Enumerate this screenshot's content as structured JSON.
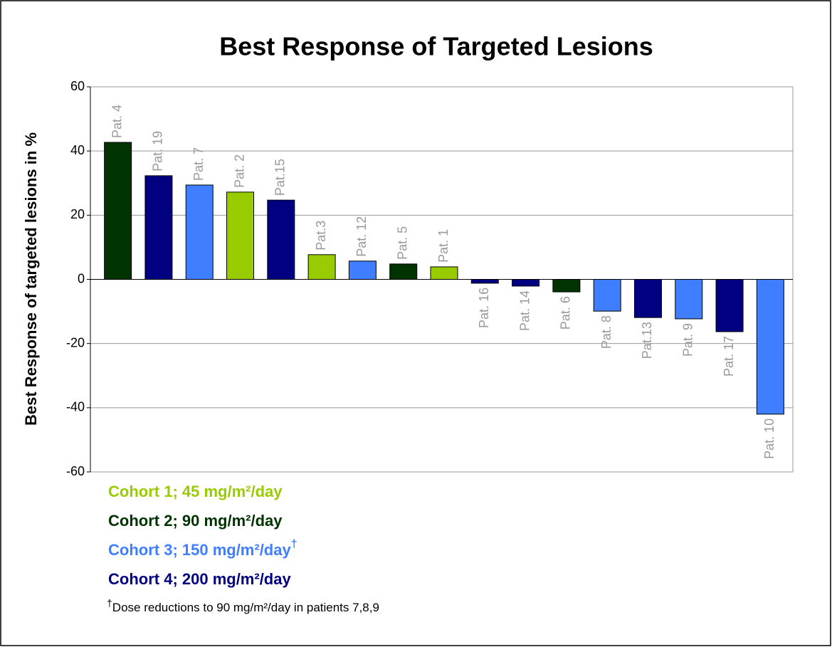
{
  "chart_data": {
    "type": "bar",
    "title": "Best Response of Targeted Lesions",
    "y_label": "Best Response of targeted lesions in %",
    "categories": [
      "Pat. 4",
      "Pat. 19",
      "Pat. 7",
      "Pat. 2",
      "Pat.15",
      "Pat.3",
      "Pat. 12",
      "Pat. 5",
      "Pat. 1",
      "Pat. 16",
      "Pat. 14",
      "Pat. 6",
      "Pat. 8",
      "Pat.13",
      "Pat. 9",
      "Pat. 17",
      "Pat. 10"
    ],
    "values": [
      42.7,
      32.3,
      29.4,
      27.2,
      24.7,
      7.7,
      5.7,
      4.8,
      3.9,
      -1.2,
      -2.1,
      -3.9,
      -9.9,
      -11.9,
      -12.3,
      -16.3,
      -42.0
    ],
    "colors": [
      "#003300",
      "#000080",
      "#3f7fff",
      "#99cc00",
      "#000080",
      "#99cc00",
      "#3f7fff",
      "#003300",
      "#99cc00",
      "#000080",
      "#000080",
      "#003300",
      "#3f7fff",
      "#000080",
      "#3f7fff",
      "#000080",
      "#3f7fff"
    ],
    "label_color": "#999999",
    "ylim": [
      -60,
      60
    ],
    "yticks": [
      -60,
      -40,
      -20,
      0,
      20,
      40,
      60
    ],
    "grid": true,
    "legend": [
      {
        "name": "Cohort 1; 45 mg/m²/day",
        "color": "#99cc00"
      },
      {
        "name": "Cohort 2; 90 mg/m²/day",
        "color": "#003300"
      },
      {
        "name": "Cohort 3; 150 mg/m²/day",
        "color": "#3f7fff",
        "mark": "†"
      },
      {
        "name": "Cohort 4; 200 mg/m²/day",
        "color": "#000080"
      }
    ],
    "footnote_mark": "†",
    "footnote": "Dose reductions to 90 mg/m²/day in patients 7,8,9"
  }
}
